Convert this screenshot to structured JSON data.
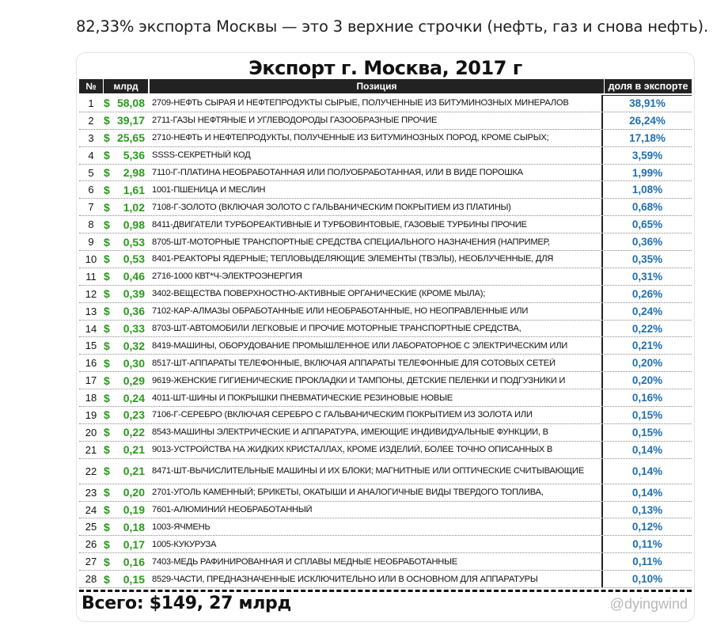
{
  "caption": "82,33% экспорта Москвы — это 3 верхние строчки (нефть, газ и снова нефть).",
  "table": {
    "title": "Экспорт г. Москва, 2017 г",
    "headers": {
      "num": "№",
      "value": "млрд",
      "position": "Позиция",
      "share": "доля в экспорте"
    },
    "currency": "$",
    "rows": [
      {
        "num": "1",
        "value": "58,08",
        "position": "2709-НЕФТЬ СЫРАЯ И НЕФТЕПРОДУКТЫ СЫРЫЕ, ПОЛУЧЕННЫЕ ИЗ БИТУМИНОЗНЫХ МИНЕРАЛОВ",
        "share": "38,91%"
      },
      {
        "num": "2",
        "value": "39,17",
        "position": "2711-ГАЗЫ НЕФТЯНЫЕ И УГЛЕВОДОРОДЫ ГАЗООБРАЗНЫЕ ПРОЧИЕ",
        "share": "26,24%"
      },
      {
        "num": "3",
        "value": "25,65",
        "position": "2710-НЕФТЬ И НЕФТЕПРОДУКТЫ, ПОЛУЧЕННЫЕ ИЗ БИТУМИНОЗНЫХ ПОРОД, КРОМЕ СЫРЫХ;",
        "share": "17,18%"
      },
      {
        "num": "4",
        "value": "5,36",
        "position": "SSSS-СЕКРЕТНЫЙ КОД",
        "share": "3,59%"
      },
      {
        "num": "5",
        "value": "2,98",
        "position": "7110-Г-ПЛАТИНА НЕОБРАБОТАННАЯ ИЛИ ПОЛУОБРАБОТАННАЯ, ИЛИ В ВИДЕ ПОРОШКА",
        "share": "1,99%"
      },
      {
        "num": "6",
        "value": "1,61",
        "position": "1001-ПШЕНИЦА И МЕСЛИН",
        "share": "1,08%"
      },
      {
        "num": "7",
        "value": "1,02",
        "position": "7108-Г-ЗОЛОТО (ВКЛЮЧАЯ ЗОЛОТО С ГАЛЬВАНИЧЕСКИМ ПОКРЫТИЕМ ИЗ ПЛАТИНЫ)",
        "share": "0,68%"
      },
      {
        "num": "8",
        "value": "0,98",
        "position": "8411-ДВИГАТЕЛИ ТУРБОРЕАКТИВНЫЕ И ТУРБОВИНТОВЫЕ, ГАЗОВЫЕ ТУРБИНЫ ПРОЧИЕ",
        "share": "0,65%"
      },
      {
        "num": "9",
        "value": "0,53",
        "position": "8705-ШТ-МОТОРНЫЕ ТРАНСПОРТНЫЕ СРЕДСТВА СПЕЦИАЛЬНОГО НАЗНАЧЕНИЯ (НАПРИМЕР,",
        "share": "0,36%"
      },
      {
        "num": "10",
        "value": "0,53",
        "position": "8401-РЕАКТОРЫ ЯДЕРНЫЕ; ТЕПЛОВЫДЕЛЯЮЩИЕ ЭЛЕМЕНТЫ (ТВЭЛЫ), НЕОБЛУЧЕННЫЕ, ДЛЯ",
        "share": "0,35%"
      },
      {
        "num": "11",
        "value": "0,46",
        "position": "2716-1000 КВТ*Ч-ЭЛЕКТРОЭНЕРГИЯ",
        "share": "0,31%"
      },
      {
        "num": "12",
        "value": "0,39",
        "position": "3402-ВЕЩЕСТВА ПОВЕРХНОСТНО-АКТИВНЫЕ ОРГАНИЧЕСКИЕ (КРОМЕ МЫЛА);",
        "share": "0,26%"
      },
      {
        "num": "13",
        "value": "0,36",
        "position": "7102-КАР-АЛМАЗЫ ОБРАБОТАННЫЕ ИЛИ НЕОБРАБОТАННЫЕ, НО НЕОПРАВЛЕННЫЕ ИЛИ",
        "share": "0,24%"
      },
      {
        "num": "14",
        "value": "0,33",
        "position": "8703-ШТ-АВТОМОБИЛИ ЛЕГКОВЫЕ И ПРОЧИЕ МОТОРНЫЕ ТРАНСПОРТНЫЕ СРЕДСТВА,",
        "share": "0,22%"
      },
      {
        "num": "15",
        "value": "0,32",
        "position": "8419-МАШИНЫ, ОБОРУДОВАНИЕ ПРОМЫШЛЕННОЕ ИЛИ ЛАБОРАТОРНОЕ С ЭЛЕКТРИЧЕСКИМ ИЛИ",
        "share": "0,21%"
      },
      {
        "num": "16",
        "value": "0,30",
        "position": "8517-ШТ-АППАРАТЫ ТЕЛЕФОННЫЕ, ВКЛЮЧАЯ АППАРАТЫ ТЕЛЕФОННЫЕ ДЛЯ СОТОВЫХ СЕТЕЙ",
        "share": "0,20%"
      },
      {
        "num": "17",
        "value": "0,29",
        "position": "9619-ЖЕНСКИЕ ГИГИЕНИЧЕСКИЕ ПРОКЛАДКИ И ТАМПОНЫ, ДЕТСКИЕ ПЕЛЕНКИ И ПОДГУЗНИКИ И",
        "share": "0,20%"
      },
      {
        "num": "18",
        "value": "0,24",
        "position": "4011-ШТ-ШИНЫ И ПОКРЫШКИ ПНЕВМАТИЧЕСКИЕ РЕЗИНОВЫЕ НОВЫЕ",
        "share": "0,16%"
      },
      {
        "num": "19",
        "value": "0,23",
        "position": "7106-Г-СЕРЕБРО (ВКЛЮЧАЯ СЕРЕБРО С ГАЛЬВАНИЧЕСКИМ ПОКРЫТИЕМ ИЗ ЗОЛОТА ИЛИ",
        "share": "0,15%"
      },
      {
        "num": "20",
        "value": "0,22",
        "position": "8543-МАШИНЫ ЭЛЕКТРИЧЕСКИЕ И АППАРАТУРА, ИМЕЮЩИЕ ИНДИВИДУАЛЬНЫЕ ФУНКЦИИ, В",
        "share": "0,15%"
      },
      {
        "num": "21",
        "value": "0,21",
        "position": "9013-УСТРОЙСТВА НА ЖИДКИХ КРИСТАЛЛАХ, КРОМЕ ИЗДЕЛИЙ, БОЛЕЕ ТОЧНО ОПИСАННЫХ В",
        "share": "0,14%"
      },
      {
        "num": "22",
        "value": "0,21",
        "position": "8471-ШТ-ВЫЧИСЛИТЕЛЬНЫЕ МАШИНЫ И ИХ БЛОКИ; МАГНИТНЫЕ ИЛИ ОПТИЧЕСКИЕ СЧИТЫВАЮЩИЕ",
        "share": "0,14%"
      },
      {
        "num": "23",
        "value": "0,20",
        "position": "2701-УГОЛЬ КАМЕННЫЙ; БРИКЕТЫ, ОКАТЫШИ И АНАЛОГИЧНЫЕ ВИДЫ ТВЕРДОГО ТОПЛИВА,",
        "share": "0,14%"
      },
      {
        "num": "24",
        "value": "0,19",
        "position": "7601-АЛЮМИНИЙ НЕОБРАБОТАННЫЙ",
        "share": "0,13%"
      },
      {
        "num": "25",
        "value": "0,18",
        "position": "1003-ЯЧМЕНЬ",
        "share": "0,12%"
      },
      {
        "num": "26",
        "value": "0,17",
        "position": "1005-КУКУРУЗА",
        "share": "0,11%"
      },
      {
        "num": "27",
        "value": "0,16",
        "position": "7403-МЕДЬ РАФИНИРОВАННАЯ И СПЛАВЫ МЕДНЫЕ НЕОБРАБОТАННЫЕ",
        "share": "0,11%"
      },
      {
        "num": "28",
        "value": "0,15",
        "position": "8529-ЧАСТИ, ПРЕДНАЗНАЧЕННЫЕ ИСКЛЮЧИТЕЛЬНО ИЛИ В ОСНОВНОМ ДЛЯ АППАРАТУРЫ",
        "share": "0,10%"
      }
    ],
    "total": "Всего: $149, 27 млрд",
    "watermark": "@dyingwind"
  },
  "colors": {
    "value_green": "#2a9a1c",
    "share_blue": "#1f6fb2",
    "header_bg": "#222222"
  }
}
